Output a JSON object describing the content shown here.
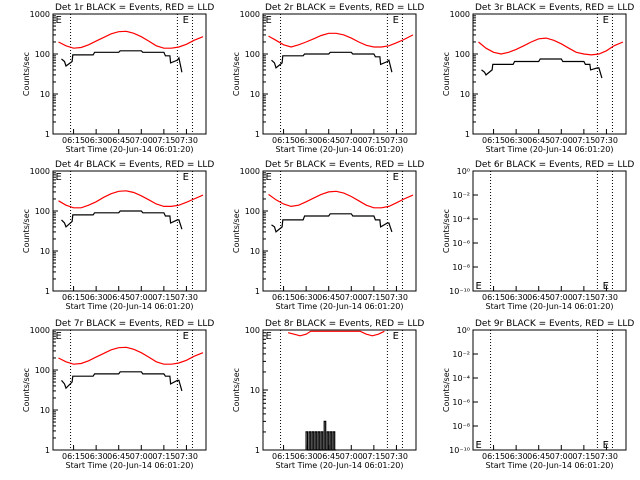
{
  "figure": {
    "start_time_label": "Start Time (20-Jun-14 06:01:20)",
    "ylabel": "Counts/sec",
    "tick_labels": [
      "06:15",
      "06:30",
      "06:45",
      "07:00",
      "07:15",
      "07:30"
    ],
    "marker_letter": "E",
    "series_colors": {
      "events": "#000000",
      "lld": "#ff0000"
    }
  },
  "chart_data": [
    {
      "type": "line",
      "title": "Det 1r BLACK = Events, RED = LLD",
      "xlabel": "Start Time (20-Jun-14 06:01:20)",
      "ylabel": "Counts/sec",
      "yscale": "log",
      "ylim": [
        1,
        1000
      ],
      "ytick_labels": [
        "1",
        "10",
        "100",
        "1000"
      ],
      "xlim": [
        "06:01:20",
        "07:43:00"
      ],
      "xtick_labels": [
        "06:15",
        "06:30",
        "06:45",
        "07:00",
        "07:15",
        "07:30"
      ],
      "vlines": [
        "06:13:00",
        "07:24:00",
        "07:34:00"
      ],
      "markers": [
        {
          "text": "E",
          "time": "06:03:00",
          "position": "top"
        },
        {
          "text": "E",
          "time": "07:27:30",
          "position": "top"
        }
      ],
      "lld": {
        "times": [
          "06:05",
          "06:10",
          "06:15",
          "06:20",
          "06:25",
          "06:30",
          "06:35",
          "06:40",
          "06:45",
          "06:50",
          "06:55",
          "07:00",
          "07:05",
          "07:10",
          "07:15",
          "07:20",
          "07:25",
          "07:30",
          "07:35",
          "07:41"
        ],
        "values": [
          200,
          160,
          140,
          145,
          170,
          210,
          260,
          320,
          360,
          370,
          330,
          270,
          210,
          160,
          140,
          140,
          150,
          175,
          220,
          270
        ]
      },
      "events": {
        "times": [
          "06:07",
          "06:09",
          "06:10",
          "06:14",
          "06:14:30",
          "06:28",
          "06:29",
          "06:45",
          "06:46",
          "07:00",
          "07:01",
          "07:15",
          "07:16",
          "07:19",
          "07:19:30",
          "07:24",
          "07:25",
          "07:27"
        ],
        "values": [
          75,
          65,
          50,
          65,
          95,
          95,
          110,
          110,
          120,
          120,
          110,
          110,
          90,
          90,
          60,
          70,
          80,
          35
        ]
      }
    },
    {
      "type": "line",
      "title": "Det 2r BLACK = Events, RED = LLD",
      "xlabel": "Start Time (20-Jun-14 06:01:20)",
      "ylabel": "Counts/sec",
      "yscale": "log",
      "ylim": [
        1,
        1000
      ],
      "ytick_labels": [
        "1",
        "10",
        "100",
        "1000"
      ],
      "xlim": [
        "06:01:20",
        "07:43:00"
      ],
      "xtick_labels": [
        "06:15",
        "06:30",
        "06:45",
        "07:00",
        "07:15",
        "07:30"
      ],
      "vlines": [
        "06:13:00",
        "07:24:00",
        "07:34:00"
      ],
      "markers": [
        {
          "text": "E",
          "time": "06:03:00",
          "position": "top"
        },
        {
          "text": "E",
          "time": "07:27:30",
          "position": "top"
        }
      ],
      "lld": {
        "times": [
          "06:05",
          "06:10",
          "06:15",
          "06:20",
          "06:25",
          "06:30",
          "06:35",
          "06:40",
          "06:45",
          "06:50",
          "06:55",
          "07:00",
          "07:05",
          "07:10",
          "07:15",
          "07:20",
          "07:25",
          "07:30",
          "07:35",
          "07:41"
        ],
        "values": [
          280,
          220,
          170,
          150,
          170,
          200,
          240,
          290,
          330,
          330,
          300,
          250,
          200,
          165,
          150,
          150,
          160,
          190,
          230,
          300
        ]
      },
      "events": {
        "times": [
          "06:07",
          "06:09",
          "06:10",
          "06:14",
          "06:14:30",
          "06:28",
          "06:29",
          "06:45",
          "06:46",
          "07:00",
          "07:01",
          "07:15",
          "07:16",
          "07:19",
          "07:19:30",
          "07:24",
          "07:25",
          "07:27"
        ],
        "values": [
          70,
          60,
          45,
          60,
          90,
          90,
          100,
          100,
          110,
          110,
          100,
          100,
          85,
          85,
          55,
          65,
          70,
          35
        ]
      }
    },
    {
      "type": "line",
      "title": "Det 3r BLACK = Events, RED = LLD",
      "xlabel": "Start Time (20-Jun-14 06:01:20)",
      "ylabel": "Counts/sec",
      "yscale": "log",
      "ylim": [
        1,
        1000
      ],
      "ytick_labels": [
        "1",
        "10",
        "100",
        "1000"
      ],
      "xlim": [
        "06:01:20",
        "07:43:00"
      ],
      "xtick_labels": [
        "06:15",
        "06:30",
        "06:45",
        "07:00",
        "07:15",
        "07:30"
      ],
      "vlines": [
        "07:24:00",
        "07:34:00"
      ],
      "markers": [
        {
          "text": "E",
          "time": "07:27:30",
          "position": "top"
        }
      ],
      "lld": {
        "times": [
          "06:05",
          "06:10",
          "06:15",
          "06:20",
          "06:25",
          "06:30",
          "06:35",
          "06:40",
          "06:45",
          "06:50",
          "06:55",
          "07:00",
          "07:05",
          "07:10",
          "07:15",
          "07:20",
          "07:25",
          "07:30",
          "07:35",
          "07:41"
        ],
        "values": [
          200,
          140,
          110,
          100,
          110,
          130,
          160,
          200,
          240,
          250,
          220,
          180,
          140,
          110,
          100,
          95,
          100,
          120,
          160,
          200
        ]
      },
      "events": {
        "times": [
          "06:07",
          "06:09",
          "06:10",
          "06:14",
          "06:14:30",
          "06:28",
          "06:29",
          "06:45",
          "06:46",
          "07:00",
          "07:01",
          "07:15",
          "07:16",
          "07:19",
          "07:19:30",
          "07:24",
          "07:25",
          "07:27"
        ],
        "values": [
          40,
          35,
          30,
          40,
          55,
          55,
          65,
          65,
          75,
          75,
          65,
          65,
          55,
          55,
          40,
          45,
          45,
          25
        ]
      }
    },
    {
      "type": "line",
      "title": "Det 4r BLACK = Events, RED = LLD",
      "xlabel": "Start Time (20-Jun-14 06:01:20)",
      "ylabel": "Counts/sec",
      "yscale": "log",
      "ylim": [
        1,
        1000
      ],
      "ytick_labels": [
        "1",
        "10",
        "100",
        "1000"
      ],
      "xlim": [
        "06:01:20",
        "07:43:00"
      ],
      "xtick_labels": [
        "06:15",
        "06:30",
        "06:45",
        "07:00",
        "07:15",
        "07:30"
      ],
      "vlines": [
        "06:13:00",
        "07:24:00",
        "07:34:00"
      ],
      "markers": [
        {
          "text": "E",
          "time": "06:03:00",
          "position": "top"
        },
        {
          "text": "E",
          "time": "07:27:30",
          "position": "top"
        }
      ],
      "lld": {
        "times": [
          "06:05",
          "06:10",
          "06:15",
          "06:20",
          "06:25",
          "06:30",
          "06:35",
          "06:40",
          "06:45",
          "06:50",
          "06:55",
          "07:00",
          "07:05",
          "07:10",
          "07:15",
          "07:20",
          "07:25",
          "07:30",
          "07:35",
          "07:41"
        ],
        "values": [
          180,
          140,
          120,
          120,
          140,
          170,
          220,
          270,
          310,
          320,
          290,
          240,
          190,
          150,
          130,
          130,
          140,
          165,
          200,
          250
        ]
      },
      "events": {
        "times": [
          "06:07",
          "06:09",
          "06:10",
          "06:14",
          "06:14:30",
          "06:28",
          "06:29",
          "06:45",
          "06:46",
          "07:00",
          "07:01",
          "07:15",
          "07:16",
          "07:19",
          "07:19:30",
          "07:24",
          "07:25",
          "07:27"
        ],
        "values": [
          60,
          50,
          40,
          55,
          80,
          80,
          90,
          90,
          100,
          100,
          90,
          90,
          75,
          75,
          50,
          60,
          60,
          35
        ]
      }
    },
    {
      "type": "line",
      "title": "Det 5r BLACK = Events, RED = LLD",
      "xlabel": "Start Time (20-Jun-14 06:01:20)",
      "ylabel": "Counts/sec",
      "yscale": "log",
      "ylim": [
        1,
        1000
      ],
      "ytick_labels": [
        "1",
        "10",
        "100",
        "1000"
      ],
      "xlim": [
        "06:01:20",
        "07:43:00"
      ],
      "xtick_labels": [
        "06:15",
        "06:30",
        "06:45",
        "07:00",
        "07:15",
        "07:30"
      ],
      "vlines": [
        "06:13:00",
        "07:24:00",
        "07:34:00"
      ],
      "markers": [
        {
          "text": "E",
          "time": "06:03:00",
          "position": "top"
        },
        {
          "text": "E",
          "time": "07:27:30",
          "position": "top"
        }
      ],
      "lld": {
        "times": [
          "06:05",
          "06:10",
          "06:15",
          "06:20",
          "06:25",
          "06:30",
          "06:35",
          "06:40",
          "06:45",
          "06:50",
          "06:55",
          "07:00",
          "07:05",
          "07:10",
          "07:15",
          "07:20",
          "07:25",
          "07:30",
          "07:35",
          "07:41"
        ],
        "values": [
          260,
          190,
          150,
          130,
          140,
          170,
          210,
          260,
          300,
          310,
          280,
          230,
          180,
          140,
          120,
          120,
          130,
          160,
          200,
          250
        ]
      },
      "events": {
        "times": [
          "06:07",
          "06:09",
          "06:10",
          "06:14",
          "06:14:30",
          "06:28",
          "06:29",
          "06:45",
          "06:46",
          "07:00",
          "07:01",
          "07:15",
          "07:16",
          "07:19",
          "07:19:30",
          "07:24",
          "07:25",
          "07:27"
        ],
        "values": [
          45,
          40,
          30,
          40,
          60,
          60,
          75,
          75,
          85,
          85,
          75,
          75,
          60,
          60,
          40,
          50,
          50,
          30
        ]
      }
    },
    {
      "type": "line",
      "title": "Det 6r BLACK = Events, RED = LLD",
      "xlabel": "Start Time (20-Jun-14 06:01:20)",
      "ylabel": "Counts/sec",
      "yscale": "log",
      "ylim": [
        1,
        1e-10
      ],
      "ytick_labels": [
        "10⁻¹⁰",
        "10⁻⁸",
        "10⁻⁶",
        "10⁻⁴",
        "10⁻²",
        "10⁰"
      ],
      "xlim": [
        "06:01:20",
        "07:43:00"
      ],
      "xtick_labels": [
        "06:15",
        "06:30",
        "06:45",
        "07:00",
        "07:15",
        "07:30"
      ],
      "vlines": [
        "06:13:00",
        "07:24:00",
        "07:34:00"
      ],
      "markers": [
        {
          "text": "E",
          "time": "06:03:00",
          "position": "bottom"
        },
        {
          "text": "E",
          "time": "07:27:30",
          "position": "bottom"
        }
      ],
      "lld": null,
      "events": null
    },
    {
      "type": "line",
      "title": "Det 7r BLACK = Events, RED = LLD",
      "xlabel": "Start Time (20-Jun-14 06:01:20)",
      "ylabel": "Counts/sec",
      "yscale": "log",
      "ylim": [
        1,
        1000
      ],
      "ytick_labels": [
        "1",
        "10",
        "100",
        "1000"
      ],
      "xlim": [
        "06:01:20",
        "07:43:00"
      ],
      "xtick_labels": [
        "06:15",
        "06:30",
        "06:45",
        "07:00",
        "07:15",
        "07:30"
      ],
      "vlines": [
        "06:13:00",
        "07:24:00",
        "07:34:00"
      ],
      "markers": [
        {
          "text": "E",
          "time": "06:03:00",
          "position": "top"
        },
        {
          "text": "E",
          "time": "07:27:30",
          "position": "top"
        }
      ],
      "lld": {
        "times": [
          "06:05",
          "06:10",
          "06:15",
          "06:20",
          "06:25",
          "06:30",
          "06:35",
          "06:40",
          "06:45",
          "06:50",
          "06:55",
          "07:00",
          "07:05",
          "07:10",
          "07:15",
          "07:20",
          "07:25",
          "07:30",
          "07:35",
          "07:41"
        ],
        "values": [
          200,
          160,
          140,
          145,
          170,
          210,
          260,
          320,
          360,
          370,
          330,
          270,
          210,
          160,
          140,
          140,
          150,
          175,
          220,
          270
        ]
      },
      "events": {
        "times": [
          "06:07",
          "06:09",
          "06:10",
          "06:14",
          "06:14:30",
          "06:28",
          "06:29",
          "06:45",
          "06:46",
          "07:00",
          "07:01",
          "07:15",
          "07:16",
          "07:19",
          "07:19:30",
          "07:24",
          "07:25",
          "07:27"
        ],
        "values": [
          55,
          45,
          35,
          50,
          70,
          70,
          80,
          80,
          90,
          90,
          80,
          80,
          70,
          70,
          45,
          55,
          55,
          30
        ]
      }
    },
    {
      "type": "line",
      "title": "Det 8r BLACK = Events, RED = LLD",
      "xlabel": "Start Time (20-Jun-14 06:01:20)",
      "ylabel": "Counts/sec",
      "yscale": "log",
      "ylim": [
        1,
        100
      ],
      "ytick_labels": [
        "1",
        "10",
        "100"
      ],
      "xlim": [
        "06:01:20",
        "07:43:00"
      ],
      "xtick_labels": [
        "06:15",
        "06:30",
        "06:45",
        "07:00",
        "07:15",
        "07:30"
      ],
      "vlines": [
        "06:13:00",
        "07:24:00",
        "07:34:00"
      ],
      "markers": [
        {
          "text": "E",
          "time": "06:03:00",
          "position": "top"
        },
        {
          "text": "E",
          "time": "07:27:30",
          "position": "top"
        }
      ],
      "lld": {
        "times": [
          "06:18",
          "06:22",
          "06:26",
          "06:30",
          "06:33",
          "07:06",
          "07:10",
          "07:14",
          "07:18",
          "07:22"
        ],
        "values": [
          90,
          85,
          80,
          85,
          95,
          95,
          85,
          80,
          85,
          95
        ]
      },
      "events": {
        "times": [
          "06:30",
          "06:30",
          "06:31",
          "06:31",
          "06:32",
          "06:32",
          "06:33",
          "06:33",
          "06:34",
          "06:34",
          "06:35",
          "06:35",
          "06:36",
          "06:36",
          "06:37",
          "06:37",
          "06:38",
          "06:38",
          "06:39",
          "06:39",
          "06:40",
          "06:40",
          "06:41",
          "06:41",
          "06:42",
          "06:42",
          "06:43",
          "06:43",
          "06:44",
          "06:44",
          "06:45",
          "06:45",
          "06:46",
          "06:46",
          "06:47",
          "06:47",
          "06:48",
          "06:48",
          "06:49",
          "06:49",
          "06:50",
          "06:50"
        ],
        "values": [
          1,
          2,
          2,
          1,
          1,
          2,
          2,
          1,
          1,
          2,
          2,
          1,
          1,
          2,
          2,
          1,
          1,
          2,
          2,
          1,
          1,
          2,
          2,
          1,
          1,
          3,
          3,
          1,
          1,
          2,
          2,
          1,
          1,
          2,
          2,
          1,
          1,
          2,
          2,
          1,
          1,
          1
        ]
      }
    },
    {
      "type": "line",
      "title": "Det 9r BLACK = Events, RED = LLD",
      "xlabel": "Start Time (20-Jun-14 06:01:20)",
      "ylabel": "Counts/sec",
      "yscale": "log",
      "ylim": [
        1,
        1e-10
      ],
      "ytick_labels": [
        "10⁻¹⁰",
        "10⁻⁸",
        "10⁻⁶",
        "10⁻⁴",
        "10⁻²",
        "10⁰"
      ],
      "xlim": [
        "06:01:20",
        "07:43:00"
      ],
      "xtick_labels": [
        "06:15",
        "06:30",
        "06:45",
        "07:00",
        "07:15",
        "07:30"
      ],
      "vlines": [
        "06:13:00",
        "07:24:00",
        "07:34:00"
      ],
      "markers": [
        {
          "text": "E",
          "time": "06:03:00",
          "position": "bottom"
        },
        {
          "text": "E",
          "time": "07:27:30",
          "position": "bottom"
        }
      ],
      "lld": null,
      "events": null
    }
  ]
}
